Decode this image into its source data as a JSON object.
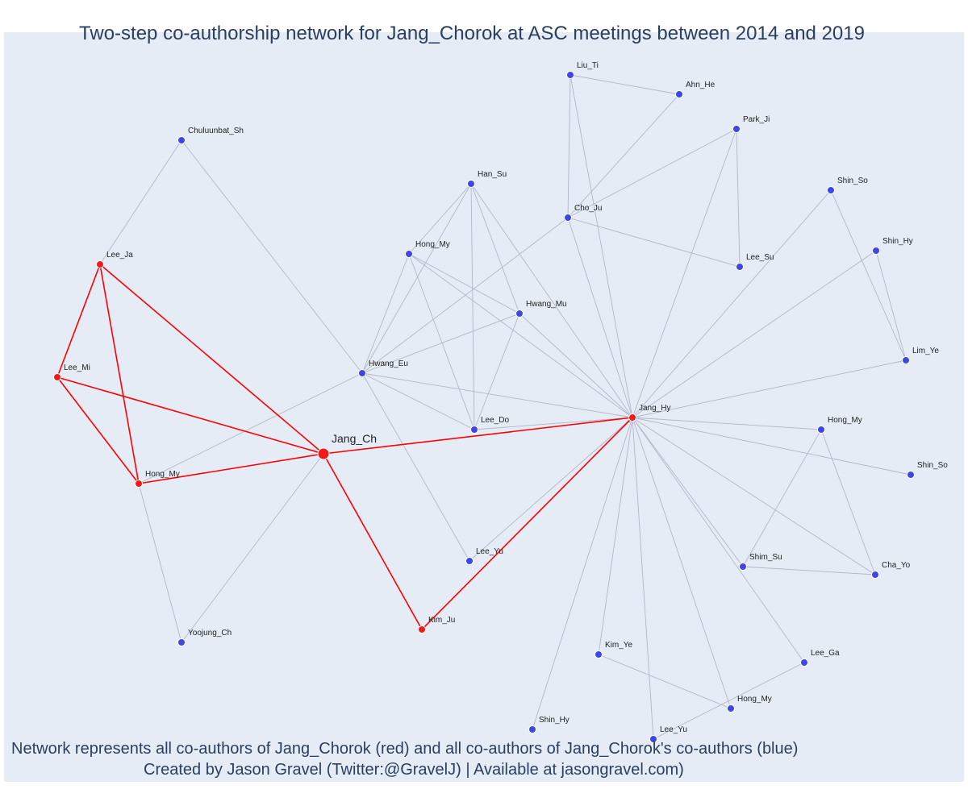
{
  "title": "Two-step co-authorship network for Jang_Chorok at ASC meetings between 2014 and 2019",
  "caption": {
    "line1": "Network represents all co-authors of Jang_Chorok (red) and all co-authors of Jang_Chorok's co-authors (blue)",
    "line2": "Created by Jason Gravel (Twitter:@GravelJ) | Available at jasongravel.com)"
  },
  "colors": {
    "coauthor": "#ef1b1b",
    "second_step": "#4045e6",
    "red_edge": "#ff0000",
    "grey_edge": "#b4b6c8",
    "background": "#e5ecf6"
  },
  "legend": {
    "red": "co-authors of Jang_Chorok",
    "blue": "co-authors of Jang_Chorok's co-authors"
  },
  "nodes": [
    {
      "id": "jang_ch",
      "label": "Jang_Ch",
      "group": "red",
      "focal": true
    },
    {
      "id": "lee_ja",
      "label": "Lee_Ja",
      "group": "red"
    },
    {
      "id": "lee_mi",
      "label": "Lee_Mi",
      "group": "red"
    },
    {
      "id": "hong_my_l",
      "label": "Hong_My",
      "group": "red"
    },
    {
      "id": "kim_ju",
      "label": "Kim_Ju",
      "group": "red"
    },
    {
      "id": "jang_hy",
      "label": "Jang_Hy",
      "group": "red"
    },
    {
      "id": "chuluunbat_sh",
      "label": "Chuluunbat_Sh",
      "group": "blue"
    },
    {
      "id": "yoojung_ch",
      "label": "Yoojung_Ch",
      "group": "blue"
    },
    {
      "id": "hwang_eu",
      "label": "Hwang_Eu",
      "group": "blue"
    },
    {
      "id": "han_su",
      "label": "Han_Su",
      "group": "blue"
    },
    {
      "id": "hong_my_c",
      "label": "Hong_My",
      "group": "blue"
    },
    {
      "id": "hwang_mu",
      "label": "Hwang_Mu",
      "group": "blue"
    },
    {
      "id": "lee_do",
      "label": "Lee_Do",
      "group": "blue"
    },
    {
      "id": "lee_yu_c",
      "label": "Lee_Yu",
      "group": "blue"
    },
    {
      "id": "liu_ti",
      "label": "Liu_Ti",
      "group": "blue"
    },
    {
      "id": "ahn_he",
      "label": "Ahn_He",
      "group": "blue"
    },
    {
      "id": "park_ji",
      "label": "Park_Ji",
      "group": "blue"
    },
    {
      "id": "cho_ju",
      "label": "Cho_Ju",
      "group": "blue"
    },
    {
      "id": "lee_su",
      "label": "Lee_Su",
      "group": "blue"
    },
    {
      "id": "shin_so_t",
      "label": "Shin_So",
      "group": "blue"
    },
    {
      "id": "shin_hy_t",
      "label": "Shin_Hy",
      "group": "blue"
    },
    {
      "id": "lim_ye",
      "label": "Lim_Ye",
      "group": "blue"
    },
    {
      "id": "hong_my_r",
      "label": "Hong_My",
      "group": "blue"
    },
    {
      "id": "shin_so_r",
      "label": "Shin_So",
      "group": "blue"
    },
    {
      "id": "shim_su",
      "label": "Shim_Su",
      "group": "blue"
    },
    {
      "id": "cha_yo",
      "label": "Cha_Yo",
      "group": "blue"
    },
    {
      "id": "lee_ga",
      "label": "Lee_Ga",
      "group": "blue"
    },
    {
      "id": "kim_ye",
      "label": "Kim_Ye",
      "group": "blue"
    },
    {
      "id": "hong_my_b",
      "label": "Hong_My",
      "group": "blue"
    },
    {
      "id": "shin_hy_b",
      "label": "Shin_Hy",
      "group": "blue"
    },
    {
      "id": "lee_yu_b",
      "label": "Lee_Yu",
      "group": "blue"
    }
  ],
  "edges": [
    [
      "jang_ch",
      "lee_ja",
      "red"
    ],
    [
      "jang_ch",
      "lee_mi",
      "red"
    ],
    [
      "jang_ch",
      "hong_my_l",
      "red"
    ],
    [
      "jang_ch",
      "kim_ju",
      "red"
    ],
    [
      "jang_ch",
      "jang_hy",
      "red"
    ],
    [
      "lee_ja",
      "lee_mi",
      "red"
    ],
    [
      "lee_ja",
      "hong_my_l",
      "red"
    ],
    [
      "lee_mi",
      "hong_my_l",
      "red"
    ],
    [
      "kim_ju",
      "jang_hy",
      "red"
    ],
    [
      "lee_ja",
      "chuluunbat_sh",
      "grey"
    ],
    [
      "chuluunbat_sh",
      "hwang_eu",
      "grey"
    ],
    [
      "hong_my_l",
      "yoojung_ch",
      "grey"
    ],
    [
      "hong_my_l",
      "hwang_eu",
      "grey"
    ],
    [
      "yoojung_ch",
      "jang_ch",
      "grey"
    ],
    [
      "hwang_eu",
      "han_su",
      "grey"
    ],
    [
      "hwang_eu",
      "hong_my_c",
      "grey"
    ],
    [
      "hwang_eu",
      "hwang_mu",
      "grey"
    ],
    [
      "hwang_eu",
      "cho_ju",
      "grey"
    ],
    [
      "hwang_eu",
      "lee_do",
      "grey"
    ],
    [
      "hwang_eu",
      "lee_yu_c",
      "grey"
    ],
    [
      "hwang_eu",
      "jang_hy",
      "grey"
    ],
    [
      "han_su",
      "hong_my_c",
      "grey"
    ],
    [
      "han_su",
      "hwang_mu",
      "grey"
    ],
    [
      "han_su",
      "lee_do",
      "grey"
    ],
    [
      "han_su",
      "jang_hy",
      "grey"
    ],
    [
      "hong_my_c",
      "hwang_mu",
      "grey"
    ],
    [
      "hong_my_c",
      "lee_do",
      "grey"
    ],
    [
      "hong_my_c",
      "jang_hy",
      "grey"
    ],
    [
      "hwang_mu",
      "lee_do",
      "grey"
    ],
    [
      "hwang_mu",
      "jang_hy",
      "grey"
    ],
    [
      "lee_do",
      "jang_hy",
      "grey"
    ],
    [
      "lee_yu_c",
      "jang_hy",
      "grey"
    ],
    [
      "liu_ti",
      "ahn_he",
      "grey"
    ],
    [
      "liu_ti",
      "cho_ju",
      "grey"
    ],
    [
      "liu_ti",
      "jang_hy",
      "grey"
    ],
    [
      "ahn_he",
      "cho_ju",
      "grey"
    ],
    [
      "park_ji",
      "cho_ju",
      "grey"
    ],
    [
      "park_ji",
      "lee_su",
      "grey"
    ],
    [
      "park_ji",
      "jang_hy",
      "grey"
    ],
    [
      "cho_ju",
      "lee_su",
      "grey"
    ],
    [
      "cho_ju",
      "jang_hy",
      "grey"
    ],
    [
      "shin_so_t",
      "lim_ye",
      "grey"
    ],
    [
      "shin_so_t",
      "jang_hy",
      "grey"
    ],
    [
      "shin_hy_t",
      "lim_ye",
      "grey"
    ],
    [
      "shin_hy_t",
      "jang_hy",
      "grey"
    ],
    [
      "lim_ye",
      "jang_hy",
      "grey"
    ],
    [
      "hong_my_r",
      "jang_hy",
      "grey"
    ],
    [
      "hong_my_r",
      "shim_su",
      "grey"
    ],
    [
      "hong_my_r",
      "cha_yo",
      "grey"
    ],
    [
      "shin_so_r",
      "jang_hy",
      "grey"
    ],
    [
      "shim_su",
      "jang_hy",
      "grey"
    ],
    [
      "shim_su",
      "cha_yo",
      "grey"
    ],
    [
      "cha_yo",
      "jang_hy",
      "grey"
    ],
    [
      "lee_ga",
      "jang_hy",
      "grey"
    ],
    [
      "lee_ga",
      "lee_yu_b",
      "grey"
    ],
    [
      "kim_ye",
      "jang_hy",
      "grey"
    ],
    [
      "kim_ye",
      "hong_my_b",
      "grey"
    ],
    [
      "hong_my_b",
      "jang_hy",
      "grey"
    ],
    [
      "shin_hy_b",
      "jang_hy",
      "grey"
    ],
    [
      "lee_yu_b",
      "jang_hy",
      "grey"
    ]
  ]
}
